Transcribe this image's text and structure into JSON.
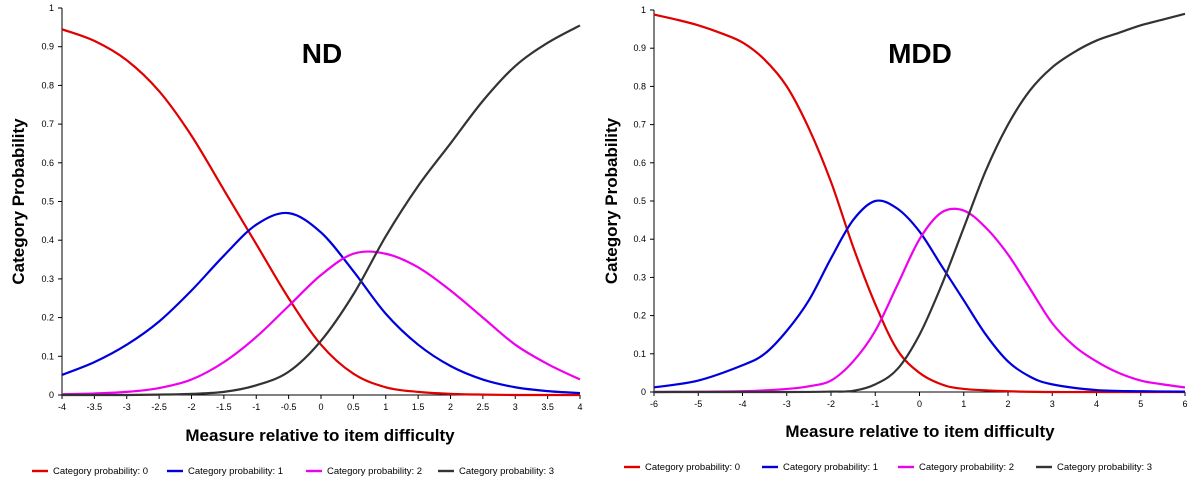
{
  "chart_data": [
    {
      "type": "line",
      "title": "ND",
      "xlabel": "Measure relative to item difficulty",
      "ylabel": "Category Probability",
      "xlim": [
        -4,
        4
      ],
      "ylim": [
        0,
        1
      ],
      "x_ticks": [
        "-4",
        "-3.5",
        "-3",
        "-2.5",
        "-2",
        "-1.5",
        "-1",
        "-0.5",
        "0",
        "0.5",
        "1",
        "1.5",
        "2",
        "2.5",
        "3",
        "3.5",
        "4"
      ],
      "y_ticks": [
        "0",
        "0.1",
        "0.2",
        "0.3",
        "0.4",
        "0.5",
        "0.6",
        "0.7",
        "0.8",
        "0.9",
        "1"
      ],
      "grid": false,
      "legend_position": "bottom",
      "series": [
        {
          "name": "Category probability: 0",
          "color": "#e00000",
          "x": [
            -4,
            -3.5,
            -3,
            -2.5,
            -2,
            -1.5,
            -1,
            -0.5,
            0,
            0.5,
            1,
            1.5,
            2,
            2.5,
            3,
            3.5,
            4
          ],
          "values": [
            0.945,
            0.915,
            0.865,
            0.785,
            0.67,
            0.53,
            0.39,
            0.25,
            0.13,
            0.055,
            0.02,
            0.008,
            0.003,
            0.001,
            0,
            0,
            0
          ]
        },
        {
          "name": "Category probability: 1",
          "color": "#0000dd",
          "x": [
            -4,
            -3.5,
            -3,
            -2.5,
            -2,
            -1.5,
            -1,
            -0.5,
            0,
            0.5,
            1,
            1.5,
            2,
            2.5,
            3,
            3.5,
            4
          ],
          "values": [
            0.052,
            0.085,
            0.13,
            0.19,
            0.27,
            0.36,
            0.44,
            0.47,
            0.42,
            0.32,
            0.21,
            0.13,
            0.075,
            0.04,
            0.02,
            0.01,
            0.005
          ]
        },
        {
          "name": "Category probability: 2",
          "color": "#ee00ee",
          "x": [
            -4,
            -3.5,
            -3,
            -2.5,
            -2,
            -1.5,
            -1,
            -0.5,
            0,
            0.5,
            1,
            1.5,
            2,
            2.5,
            3,
            3.5,
            4
          ],
          "values": [
            0.002,
            0.004,
            0.008,
            0.018,
            0.04,
            0.085,
            0.15,
            0.23,
            0.31,
            0.365,
            0.365,
            0.33,
            0.27,
            0.2,
            0.13,
            0.08,
            0.04
          ]
        },
        {
          "name": "Category probability: 3",
          "color": "#333333",
          "x": [
            -4,
            -3.5,
            -3,
            -2.5,
            -2,
            -1.5,
            -1,
            -0.5,
            0,
            0.5,
            1,
            1.5,
            2,
            2.5,
            3,
            3.5,
            4
          ],
          "values": [
            0,
            0,
            0,
            0.001,
            0.003,
            0.008,
            0.025,
            0.06,
            0.14,
            0.26,
            0.41,
            0.54,
            0.65,
            0.76,
            0.85,
            0.91,
            0.955
          ]
        }
      ]
    },
    {
      "type": "line",
      "title": "MDD",
      "xlabel": "Measure relative to item difficulty",
      "ylabel": "Category Probability",
      "xlim": [
        -6,
        6
      ],
      "ylim": [
        0,
        1
      ],
      "x_ticks": [
        "-6",
        "-5",
        "-4",
        "-3",
        "-2",
        "-1",
        "0",
        "1",
        "2",
        "3",
        "4",
        "5",
        "6"
      ],
      "y_ticks": [
        "0",
        "0.1",
        "0.2",
        "0.3",
        "0.4",
        "0.5",
        "0.6",
        "0.7",
        "0.8",
        "0.9",
        "1"
      ],
      "grid": false,
      "legend_position": "bottom",
      "series": [
        {
          "name": "Category probability: 0",
          "color": "#e00000",
          "x": [
            -6,
            -5.5,
            -5,
            -4.5,
            -4,
            -3.5,
            -3,
            -2.5,
            -2,
            -1.5,
            -1,
            -0.5,
            0,
            0.5,
            1,
            2,
            3,
            4,
            5,
            6
          ],
          "values": [
            0.988,
            0.975,
            0.96,
            0.94,
            0.915,
            0.87,
            0.8,
            0.69,
            0.55,
            0.38,
            0.23,
            0.11,
            0.05,
            0.02,
            0.008,
            0.002,
            0,
            0,
            0,
            0
          ]
        },
        {
          "name": "Category probability: 1",
          "color": "#0000dd",
          "x": [
            -6,
            -5,
            -4,
            -3.5,
            -3,
            -2.5,
            -2,
            -1.5,
            -1,
            -0.5,
            0,
            0.5,
            1,
            1.5,
            2,
            2.5,
            3,
            4,
            5,
            6
          ],
          "values": [
            0.012,
            0.03,
            0.07,
            0.1,
            0.16,
            0.24,
            0.35,
            0.45,
            0.5,
            0.48,
            0.42,
            0.33,
            0.24,
            0.15,
            0.08,
            0.04,
            0.02,
            0.005,
            0.002,
            0.001
          ]
        },
        {
          "name": "Category probability: 2",
          "color": "#ee00ee",
          "x": [
            -6,
            -4,
            -3,
            -2.5,
            -2,
            -1.5,
            -1,
            -0.5,
            0,
            0.5,
            1,
            1.5,
            2,
            2.5,
            3,
            3.5,
            4,
            4.5,
            5,
            5.5,
            6
          ],
          "values": [
            0,
            0.002,
            0.008,
            0.015,
            0.03,
            0.08,
            0.16,
            0.28,
            0.4,
            0.47,
            0.475,
            0.43,
            0.36,
            0.27,
            0.18,
            0.12,
            0.08,
            0.05,
            0.03,
            0.02,
            0.012
          ]
        },
        {
          "name": "Category probability: 3",
          "color": "#333333",
          "x": [
            -6,
            -3,
            -2,
            -1.5,
            -1,
            -0.5,
            0,
            0.5,
            1,
            1.5,
            2,
            2.5,
            3,
            3.5,
            4,
            4.5,
            5,
            5.5,
            6
          ],
          "values": [
            0,
            0,
            0.001,
            0.003,
            0.02,
            0.06,
            0.15,
            0.28,
            0.43,
            0.58,
            0.7,
            0.79,
            0.85,
            0.89,
            0.92,
            0.94,
            0.96,
            0.975,
            0.99
          ]
        }
      ]
    }
  ]
}
